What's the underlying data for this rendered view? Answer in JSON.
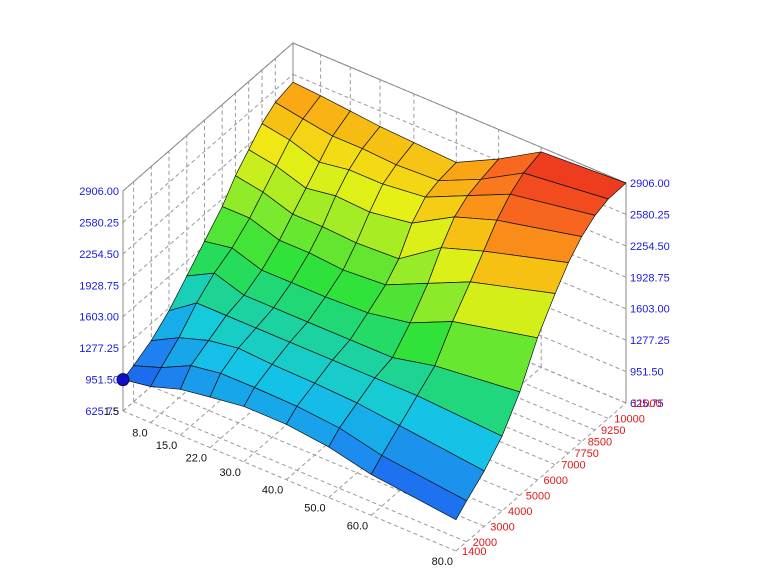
{
  "chart_data": {
    "type": "surface",
    "title": "",
    "x_axis": {
      "label": "",
      "ticks": [
        "1.5",
        "8.0",
        "15.0",
        "22.0",
        "30.0",
        "40.0",
        "50.0",
        "60.0",
        "80.0"
      ],
      "values": [
        1.5,
        8.0,
        15.0,
        22.0,
        30.0,
        40.0,
        50.0,
        60.0,
        80.0
      ],
      "color": "#111111"
    },
    "y_axis": {
      "label": "",
      "ticks": [
        "1400",
        "2000",
        "3000",
        "4000",
        "5000",
        "6000",
        "7000",
        "7750",
        "8500",
        "9250",
        "10000",
        "11000"
      ],
      "values": [
        1400,
        2000,
        3000,
        4000,
        5000,
        6000,
        7000,
        7750,
        8500,
        9250,
        10000,
        11000
      ],
      "color": "#e01818"
    },
    "z_axis": {
      "label": "",
      "ticks": [
        "625.75",
        "951.50",
        "1277.25",
        "1603.00",
        "1928.75",
        "2254.50",
        "2580.25",
        "2906.00"
      ],
      "range": [
        625.75,
        2906.0
      ],
      "color": "#1a1ae6"
    },
    "surface_z": [
      [
        951.5,
        1000,
        1100,
        1250,
        1450,
        1650,
        1850,
        2050,
        2200,
        2350,
        2450,
        2500
      ],
      [
        1000,
        1100,
        1250,
        1450,
        1600,
        1700,
        1850,
        2000,
        2150,
        2300,
        2400,
        2480
      ],
      [
        1100,
        1250,
        1350,
        1450,
        1500,
        1600,
        1750,
        1900,
        2050,
        2200,
        2350,
        2450
      ],
      [
        1150,
        1300,
        1400,
        1450,
        1500,
        1600,
        1750,
        1900,
        2100,
        2250,
        2350,
        2420
      ],
      [
        1200,
        1300,
        1380,
        1450,
        1500,
        1600,
        1720,
        1880,
        2080,
        2250,
        2330,
        2400
      ],
      [
        1200,
        1290,
        1370,
        1450,
        1500,
        1620,
        1750,
        1900,
        2150,
        2300,
        2350,
        2380
      ],
      [
        1150,
        1250,
        1350,
        1450,
        1500,
        1700,
        1950,
        2200,
        2400,
        2500,
        2550,
        2600
      ],
      [
        1050,
        1150,
        1300,
        1450,
        1600,
        1900,
        2150,
        2350,
        2550,
        2700,
        2800,
        2860
      ],
      [
        950,
        1050,
        1200,
        1400,
        1700,
        2100,
        2400,
        2600,
        2750,
        2850,
        2900,
        2906
      ]
    ],
    "grid": true,
    "marker": {
      "label": "951.50",
      "color": "#1010cc"
    }
  }
}
